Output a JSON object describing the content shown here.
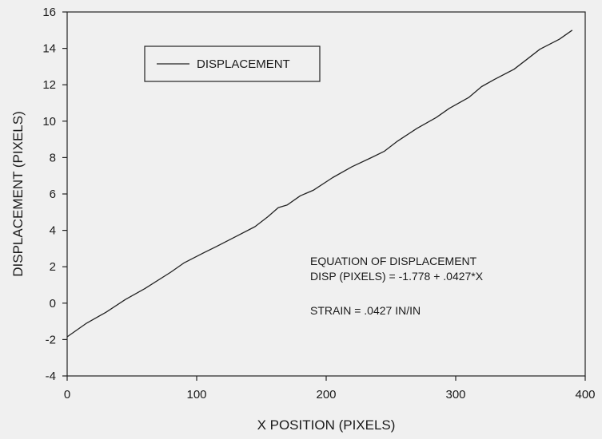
{
  "chart_data": {
    "type": "line",
    "xlabel": "X POSITION (PIXELS)",
    "ylabel": "DISPLACEMENT (PIXELS)",
    "xlim": [
      0,
      400
    ],
    "ylim": [
      -4,
      16
    ],
    "xticks": [
      0,
      100,
      200,
      300,
      400
    ],
    "yticks": [
      -4,
      -2,
      0,
      2,
      4,
      6,
      8,
      10,
      12,
      14,
      16
    ],
    "grid": false,
    "legend_position": "top-left",
    "annotations": [
      "EQUATION OF DISPLACEMENT",
      "DISP (PIXELS) = -1.778 + .0427*X",
      "STRAIN = .0427 IN/IN"
    ],
    "series": [
      {
        "name": "DISPLACEMENT",
        "color": "#222222",
        "x": [
          0,
          15,
          30,
          45,
          60,
          80,
          90,
          105,
          115,
          130,
          145,
          155,
          163,
          170,
          180,
          190,
          205,
          220,
          235,
          245,
          255,
          270,
          285,
          295,
          310,
          320,
          330,
          345,
          355,
          365,
          380,
          390
        ],
        "y": [
          -1.85,
          -1.1,
          -0.5,
          0.2,
          0.8,
          1.7,
          2.2,
          2.75,
          3.1,
          3.65,
          4.2,
          4.75,
          5.25,
          5.4,
          5.9,
          6.2,
          6.9,
          7.5,
          8.0,
          8.35,
          8.9,
          9.6,
          10.2,
          10.7,
          11.3,
          11.9,
          12.3,
          12.85,
          13.4,
          13.95,
          14.5,
          15.0
        ]
      }
    ]
  }
}
